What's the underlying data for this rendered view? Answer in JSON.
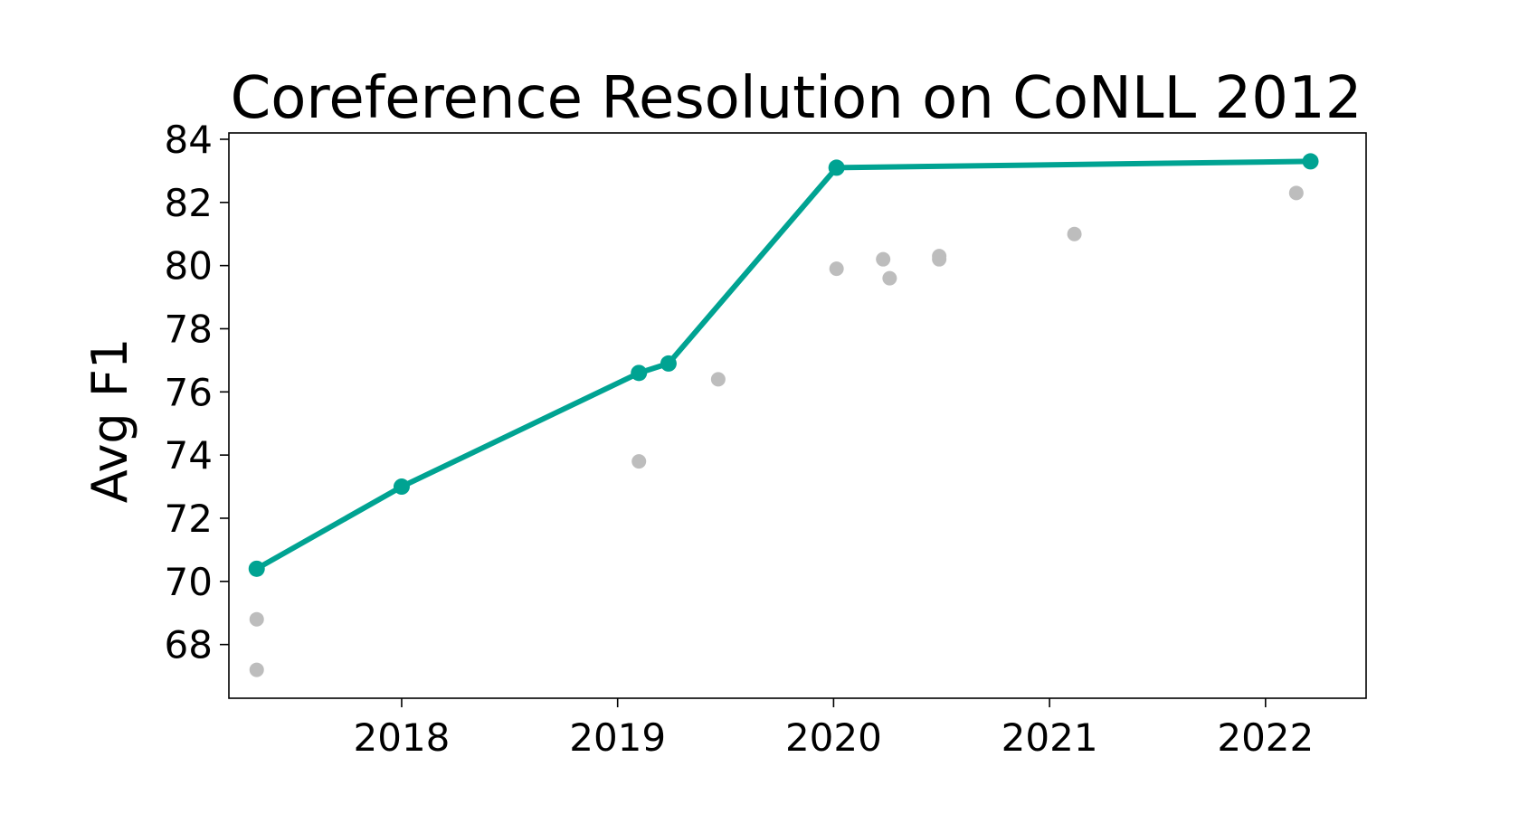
{
  "chart_data": {
    "type": "line",
    "title": "Coreference Resolution on CoNLL 2012",
    "xlabel": "",
    "ylabel": "Avg F1",
    "xlim": [
      "2017-03-15",
      "2022-06-20"
    ],
    "ylim": [
      66.3,
      84.2
    ],
    "x_ticks": [
      "2018",
      "2019",
      "2020",
      "2021",
      "2022"
    ],
    "y_ticks": [
      "68",
      "70",
      "72",
      "74",
      "76",
      "78",
      "80",
      "82",
      "84"
    ],
    "grid": false,
    "legend": "none",
    "colors": {
      "sota": "#00a392",
      "other": "#bdbdbd",
      "axis": "#000000"
    },
    "series": [
      {
        "role": "state-of-the-art",
        "style": "line-with-markers",
        "points": [
          {
            "x": "2017-05-01",
            "y": 70.4
          },
          {
            "x": "2018-01-01",
            "y": 73.0
          },
          {
            "x": "2019-02-06",
            "y": 76.6
          },
          {
            "x": "2019-03-28",
            "y": 76.9
          },
          {
            "x": "2020-01-06",
            "y": 83.1
          },
          {
            "x": "2022-03-18",
            "y": 83.3
          }
        ]
      },
      {
        "role": "other",
        "style": "scatter",
        "points": [
          {
            "x": "2017-05-01",
            "y": 68.8
          },
          {
            "x": "2017-05-01",
            "y": 67.2
          },
          {
            "x": "2019-02-06",
            "y": 73.8
          },
          {
            "x": "2019-06-20",
            "y": 76.4
          },
          {
            "x": "2020-01-06",
            "y": 79.9
          },
          {
            "x": "2020-03-25",
            "y": 80.2
          },
          {
            "x": "2020-04-05",
            "y": 79.6
          },
          {
            "x": "2020-06-28",
            "y": 80.3
          },
          {
            "x": "2020-06-28",
            "y": 80.2
          },
          {
            "x": "2021-02-12",
            "y": 81.0
          },
          {
            "x": "2022-02-22",
            "y": 82.3
          }
        ]
      }
    ]
  }
}
